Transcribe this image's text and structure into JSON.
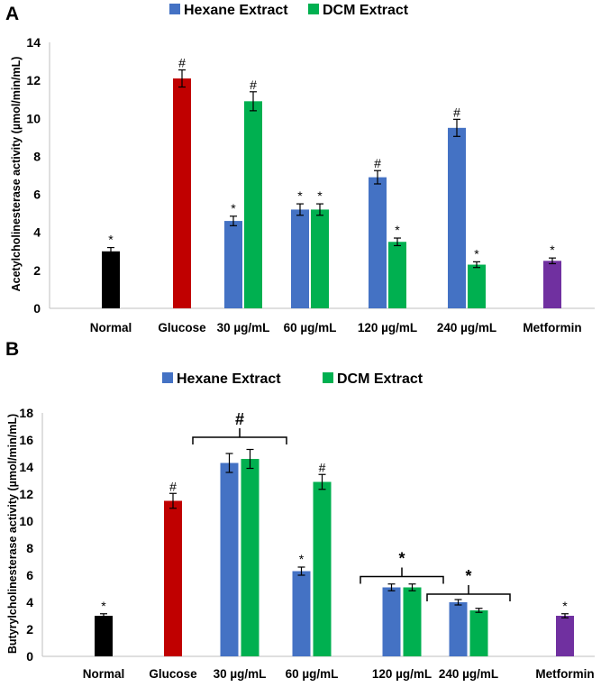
{
  "colors": {
    "hexane": "#4472C4",
    "dcm": "#00B050",
    "normal": "#000000",
    "glucose": "#C00000",
    "metformin": "#7030A0"
  },
  "chart_data": [
    {
      "type": "bar",
      "panel_label": "A",
      "ylabel": "Acetylcholinesterase activity (µmol/min/mL)",
      "xlabel": "",
      "ylim": [
        0,
        14
      ],
      "yticks": [
        "0",
        "2",
        "4",
        "6",
        "8",
        "10",
        "12",
        "14"
      ],
      "legend": [
        "Hexane Extract",
        "DCM Extract"
      ],
      "legend_position": "top",
      "categories": [
        "Normal",
        "Glucose",
        "30 µg/mL",
        "60 µg/mL",
        "120 µg/mL",
        "240 µg/mL",
        "Metformin"
      ],
      "bars": [
        {
          "category": "Normal",
          "series": "control",
          "value": 3.0,
          "error": 0.2,
          "mark": "*"
        },
        {
          "category": "Glucose",
          "series": "glucose",
          "value": 12.1,
          "error": 0.45,
          "mark": "#"
        },
        {
          "category": "30 µg/mL",
          "series": "Hexane Extract",
          "value": 4.6,
          "error": 0.25,
          "mark": "*"
        },
        {
          "category": "30 µg/mL",
          "series": "DCM Extract",
          "value": 10.9,
          "error": 0.5,
          "mark": "#"
        },
        {
          "category": "60 µg/mL",
          "series": "Hexane Extract",
          "value": 5.2,
          "error": 0.3,
          "mark": "*"
        },
        {
          "category": "60 µg/mL",
          "series": "DCM Extract",
          "value": 5.2,
          "error": 0.3,
          "mark": "*"
        },
        {
          "category": "120 µg/mL",
          "series": "Hexane Extract",
          "value": 6.9,
          "error": 0.35,
          "mark": "#"
        },
        {
          "category": "120 µg/mL",
          "series": "DCM Extract",
          "value": 3.5,
          "error": 0.2,
          "mark": "*"
        },
        {
          "category": "240 µg/mL",
          "series": "Hexane Extract",
          "value": 9.5,
          "error": 0.45,
          "mark": "#"
        },
        {
          "category": "240 µg/mL",
          "series": "DCM Extract",
          "value": 2.3,
          "error": 0.15,
          "mark": "*"
        },
        {
          "category": "Metformin",
          "series": "metformin",
          "value": 2.5,
          "error": 0.15,
          "mark": "*"
        }
      ],
      "brackets": []
    },
    {
      "type": "bar",
      "panel_label": "B",
      "ylabel": "Butyrylcholinesterase activity (µmol/min/mL)",
      "xlabel": "",
      "ylim": [
        0,
        18
      ],
      "yticks": [
        "0",
        "2",
        "4",
        "6",
        "8",
        "10",
        "12",
        "14",
        "16",
        "18"
      ],
      "legend": [
        "Hexane Extract",
        "DCM Extract"
      ],
      "legend_position": "top",
      "categories": [
        "Normal",
        "Glucose",
        "30 µg/mL",
        "60 µg/mL",
        "120 µg/mL",
        "240 µg/mL",
        "Metformin"
      ],
      "bars": [
        {
          "category": "Normal",
          "series": "control",
          "value": 3.0,
          "error": 0.15,
          "mark": "*"
        },
        {
          "category": "Glucose",
          "series": "glucose",
          "value": 11.5,
          "error": 0.55,
          "mark": "#"
        },
        {
          "category": "30 µg/mL",
          "series": "Hexane Extract",
          "value": 14.3,
          "error": 0.7,
          "mark": ""
        },
        {
          "category": "30 µg/mL",
          "series": "DCM Extract",
          "value": 14.6,
          "error": 0.7,
          "mark": ""
        },
        {
          "category": "60 µg/mL",
          "series": "Hexane Extract",
          "value": 6.3,
          "error": 0.3,
          "mark": "*"
        },
        {
          "category": "60 µg/mL",
          "series": "DCM Extract",
          "value": 12.9,
          "error": 0.55,
          "mark": "#"
        },
        {
          "category": "120 µg/mL",
          "series": "Hexane Extract",
          "value": 5.1,
          "error": 0.25,
          "mark": ""
        },
        {
          "category": "120 µg/mL",
          "series": "DCM Extract",
          "value": 5.1,
          "error": 0.25,
          "mark": ""
        },
        {
          "category": "240 µg/mL",
          "series": "Hexane Extract",
          "value": 4.0,
          "error": 0.2,
          "mark": ""
        },
        {
          "category": "240 µg/mL",
          "series": "DCM Extract",
          "value": 3.4,
          "error": 0.15,
          "mark": ""
        },
        {
          "category": "Metformin",
          "series": "metformin",
          "value": 3.0,
          "error": 0.15,
          "mark": "*"
        }
      ],
      "brackets": [
        {
          "category": "30 µg/mL",
          "value": 16.2,
          "mark": "#"
        },
        {
          "category": "120 µg/mL",
          "value": 5.9,
          "mark": "*"
        },
        {
          "category": "240 µg/mL",
          "value": 4.6,
          "mark": "*"
        }
      ]
    }
  ]
}
